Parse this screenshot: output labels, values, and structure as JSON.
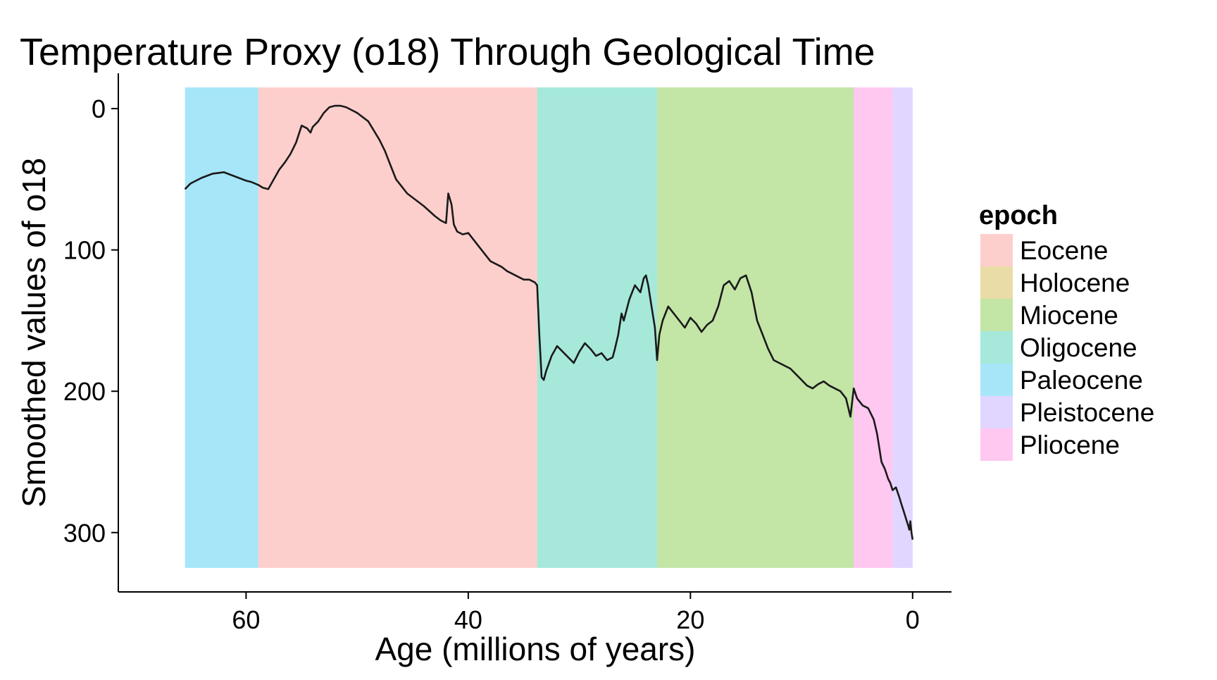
{
  "chart_data": {
    "type": "line",
    "title": "Temperature Proxy (o18) Through Geological Time",
    "xlabel": "Age (millions of years)",
    "ylabel": "Smoothed values of o18",
    "xlim": [
      71.5,
      -3.5
    ],
    "ylim": [
      -25,
      342
    ],
    "y_reversed": true,
    "x_reversed": true,
    "x_ticks": [
      60,
      40,
      20,
      0
    ],
    "y_ticks": [
      0,
      100,
      200,
      300
    ],
    "grid": false,
    "legend": {
      "title": "epoch",
      "placement": "right",
      "entries": [
        {
          "name": "Eocene",
          "color": "#f8766d"
        },
        {
          "name": "Holocene",
          "color": "#c49a00"
        },
        {
          "name": "Miocene",
          "color": "#53b400"
        },
        {
          "name": "Oligocene",
          "color": "#00c094"
        },
        {
          "name": "Paleocene",
          "color": "#00b6eb"
        },
        {
          "name": "Pleistocene",
          "color": "#a58aff"
        },
        {
          "name": "Pliocene",
          "color": "#fb61d7"
        }
      ]
    },
    "bands": [
      {
        "epoch": "Paleocene",
        "start": 65.5,
        "end": 58.9,
        "ymin": -15,
        "ymax": 325
      },
      {
        "epoch": "Eocene",
        "start": 58.9,
        "end": 33.8,
        "ymin": -15,
        "ymax": 325
      },
      {
        "epoch": "Oligocene",
        "start": 33.8,
        "end": 23.0,
        "ymin": -15,
        "ymax": 325
      },
      {
        "epoch": "Miocene",
        "start": 23.0,
        "end": 5.3,
        "ymin": -15,
        "ymax": 325
      },
      {
        "epoch": "Pliocene",
        "start": 5.3,
        "end": 1.8,
        "ymin": -15,
        "ymax": 325
      },
      {
        "epoch": "Pleistocene",
        "start": 1.8,
        "end": 0.0,
        "ymin": -15,
        "ymax": 325
      }
    ],
    "series": [
      {
        "x": [
          65.5,
          65.0,
          64.0,
          63.0,
          62.0,
          61.0,
          60.0,
          59.5,
          58.9,
          58.5,
          58.0,
          57.5,
          57.0,
          56.5,
          56.0,
          55.5,
          55.0,
          54.5,
          54.2,
          54.0,
          53.5,
          53.0,
          52.5,
          52.0,
          51.5,
          51.0,
          50.5,
          50.0,
          49.0,
          48.0,
          47.5,
          47.0,
          46.5,
          46.0,
          45.5,
          45.0,
          44.0,
          43.0,
          42.5,
          42.0,
          41.8,
          41.5,
          41.3,
          41.0,
          40.5,
          40.0,
          39.5,
          39.0,
          38.5,
          38.0,
          37.5,
          37.0,
          36.5,
          36.0,
          35.5,
          35.0,
          34.5,
          34.0,
          33.8,
          33.6,
          33.4,
          33.2,
          33.0,
          32.5,
          32.0,
          31.5,
          31.0,
          30.5,
          30.0,
          29.5,
          29.0,
          28.5,
          28.0,
          27.5,
          27.0,
          26.8,
          26.5,
          26.2,
          26.0,
          25.5,
          25.0,
          24.5,
          24.2,
          24.0,
          23.8,
          23.5,
          23.2,
          23.0,
          22.8,
          22.5,
          22.0,
          21.5,
          21.0,
          20.5,
          20.0,
          19.5,
          19.0,
          18.5,
          18.0,
          17.5,
          17.0,
          16.5,
          16.0,
          15.5,
          15.0,
          14.5,
          14.0,
          13.5,
          13.0,
          12.5,
          12.0,
          11.5,
          11.0,
          10.5,
          10.0,
          9.5,
          9.0,
          8.5,
          8.0,
          7.5,
          7.0,
          6.5,
          6.0,
          5.6,
          5.3,
          5.0,
          4.5,
          4.0,
          3.5,
          3.2,
          3.0,
          2.8,
          2.5,
          2.2,
          2.0,
          1.8,
          1.5,
          1.2,
          1.0,
          0.8,
          0.6,
          0.4,
          0.3,
          0.2,
          0.1,
          0.0
        ],
        "y": [
          57,
          53,
          49,
          46,
          45,
          48,
          51,
          52,
          54,
          56,
          57,
          50,
          43,
          38,
          32,
          24,
          12,
          14,
          17,
          13,
          9,
          3,
          -1,
          -2,
          -2,
          -1,
          1,
          3,
          9,
          22,
          30,
          40,
          50,
          55,
          60,
          63,
          69,
          76,
          79,
          81,
          60,
          68,
          82,
          87,
          89,
          88,
          93,
          98,
          103,
          108,
          110,
          112,
          115,
          117,
          119,
          121,
          121,
          123,
          125,
          160,
          190,
          192,
          186,
          175,
          168,
          172,
          176,
          180,
          172,
          166,
          170,
          175,
          173,
          178,
          176,
          170,
          160,
          145,
          150,
          135,
          125,
          130,
          120,
          118,
          125,
          140,
          155,
          178,
          160,
          150,
          140,
          145,
          150,
          155,
          148,
          152,
          158,
          153,
          150,
          140,
          125,
          122,
          128,
          120,
          118,
          130,
          150,
          160,
          170,
          178,
          180,
          182,
          184,
          188,
          192,
          196,
          198,
          195,
          193,
          196,
          198,
          200,
          205,
          218,
          198,
          205,
          210,
          212,
          220,
          230,
          240,
          250,
          255,
          262,
          265,
          270,
          268,
          275,
          280,
          285,
          290,
          295,
          298,
          292,
          300,
          305
        ]
      }
    ]
  }
}
